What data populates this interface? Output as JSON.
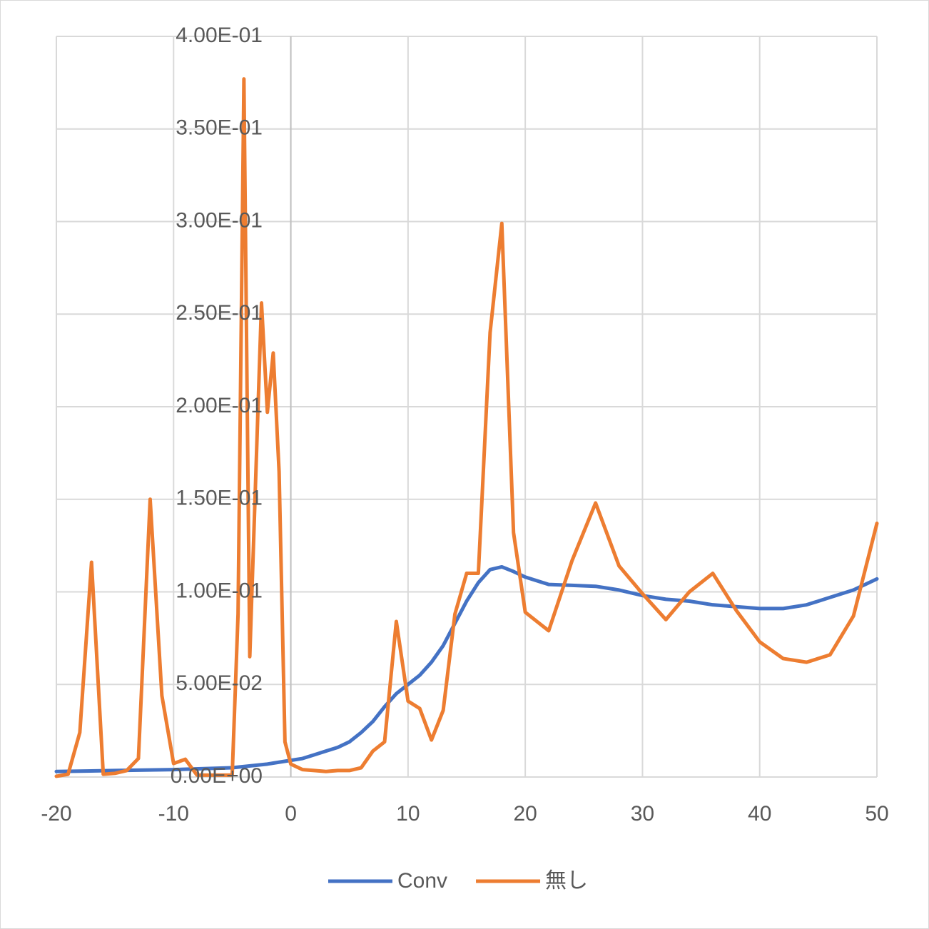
{
  "chart_data": {
    "type": "line",
    "xlim": [
      -20,
      50
    ],
    "xticks": [
      -20,
      -10,
      0,
      10,
      20,
      30,
      40,
      50
    ],
    "ylim": [
      0,
      0.4
    ],
    "yticks": [
      {
        "value": 0,
        "label": "0.00E+00"
      },
      {
        "value": 0.05,
        "label": "5.00E-02"
      },
      {
        "value": 0.1,
        "label": "1.00E-01"
      },
      {
        "value": 0.15,
        "label": "1.50E-01"
      },
      {
        "value": 0.2,
        "label": "2.00E-01"
      },
      {
        "value": 0.25,
        "label": "2.50E-01"
      },
      {
        "value": 0.3,
        "label": "3.00E-01"
      },
      {
        "value": 0.35,
        "label": "3.50E-01"
      },
      {
        "value": 0.4,
        "label": "4.00E-01"
      }
    ],
    "grid": true,
    "legend": "bottom",
    "series": [
      {
        "name": "Conv",
        "color": "#4472c4",
        "x": [
          -20,
          -15,
          -10,
          -5,
          -2,
          0,
          1,
          2,
          3,
          4,
          5,
          6,
          7,
          8,
          9,
          10,
          11,
          12,
          13,
          14,
          15,
          16,
          17,
          18,
          19,
          20,
          22,
          24,
          26,
          28,
          30,
          32,
          34,
          36,
          38,
          40,
          42,
          44,
          46,
          48,
          50
        ],
        "values": [
          0.003,
          0.0035,
          0.004,
          0.005,
          0.007,
          0.009,
          0.01,
          0.012,
          0.014,
          0.016,
          0.019,
          0.024,
          0.03,
          0.038,
          0.045,
          0.05,
          0.055,
          0.062,
          0.071,
          0.083,
          0.095,
          0.105,
          0.112,
          0.1135,
          0.111,
          0.108,
          0.104,
          0.1035,
          0.103,
          0.101,
          0.098,
          0.096,
          0.095,
          0.093,
          0.092,
          0.091,
          0.091,
          0.093,
          0.097,
          0.101,
          0.107
        ]
      },
      {
        "name": "無し",
        "color": "#ed7d31",
        "x": [
          -20,
          -19,
          -18,
          -17,
          -16,
          -15,
          -14,
          -13,
          -12,
          -11,
          -10,
          -9,
          -8,
          -5,
          -4.5,
          -4,
          -3.5,
          -2.5,
          -2,
          -1.5,
          -1,
          -0.5,
          0,
          1,
          2,
          3,
          4,
          5,
          6,
          7,
          8,
          9,
          10,
          11,
          12,
          13,
          14,
          15,
          16,
          17,
          18,
          19,
          20,
          22,
          24,
          26,
          28,
          30,
          32,
          34,
          36,
          38,
          40,
          42,
          44,
          46,
          48,
          50
        ],
        "values": [
          0.0004,
          0.0015,
          0.024,
          0.116,
          0.0015,
          0.002,
          0.0035,
          0.01,
          0.15,
          0.044,
          0.0073,
          0.0096,
          0.001,
          0.001,
          0.088,
          0.377,
          0.065,
          0.256,
          0.197,
          0.229,
          0.165,
          0.019,
          0.007,
          0.004,
          0.0035,
          0.003,
          0.0035,
          0.0035,
          0.005,
          0.014,
          0.019,
          0.084,
          0.041,
          0.037,
          0.02,
          0.036,
          0.088,
          0.11,
          0.11,
          0.24,
          0.299,
          0.132,
          0.089,
          0.079,
          0.117,
          0.148,
          0.114,
          0.099,
          0.085,
          0.1,
          0.11,
          0.09,
          0.073,
          0.064,
          0.062,
          0.066,
          0.087,
          0.137
        ]
      }
    ]
  }
}
